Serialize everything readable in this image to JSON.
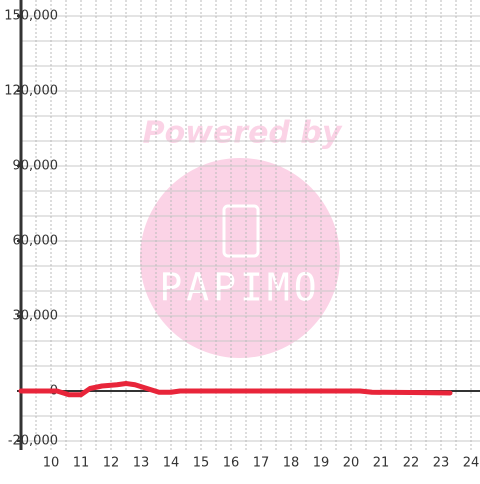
{
  "chart_data": {
    "type": "line",
    "watermark": {
      "line1": "Powered by",
      "line2": "PAPIMO"
    },
    "x": [
      9,
      10.2,
      10.6,
      11,
      11.3,
      11.7,
      12.2,
      12.5,
      12.8,
      13.2,
      13.6,
      14,
      14.3,
      16,
      18,
      20.3,
      20.7,
      22,
      23.3
    ],
    "series": [
      {
        "color": "#e8253a",
        "values": [
          0,
          0,
          -1500,
          -1500,
          1000,
          2000,
          2500,
          3000,
          2500,
          1000,
          -500,
          -500,
          0,
          0,
          0,
          0,
          -500,
          -600,
          -800
        ]
      }
    ],
    "xlim": [
      9,
      24.3
    ],
    "xticks": [
      10,
      11,
      12,
      13,
      14,
      15,
      16,
      17,
      18,
      19,
      20,
      21,
      22,
      23,
      24
    ],
    "x_grid": [
      9.5,
      10,
      10.5,
      11,
      11.5,
      12,
      12.5,
      13,
      13.5,
      14,
      14.5,
      15,
      15.5,
      16,
      16.5,
      17,
      17.5,
      18,
      18.5,
      19,
      19.5,
      20,
      20.5,
      21,
      21.5,
      22,
      22.5,
      23,
      23.5,
      24
    ],
    "ylim": [
      -20000,
      150000
    ],
    "yticks": [
      {
        "value": -20000,
        "label": "-20,000"
      },
      0,
      {
        "value": 30000,
        "label": "30,000"
      },
      {
        "value": 60000,
        "label": "60,000"
      },
      {
        "value": 90000,
        "label": "90,000"
      },
      {
        "value": 120000,
        "label": "120,000"
      },
      {
        "value": 150000,
        "label": "150,000"
      }
    ],
    "y_grid": [
      -20000,
      -10000,
      10000,
      20000,
      30000,
      40000,
      50000,
      60000,
      70000,
      80000,
      90000,
      100000,
      110000,
      120000,
      130000,
      140000,
      150000
    ],
    "grid": true
  }
}
